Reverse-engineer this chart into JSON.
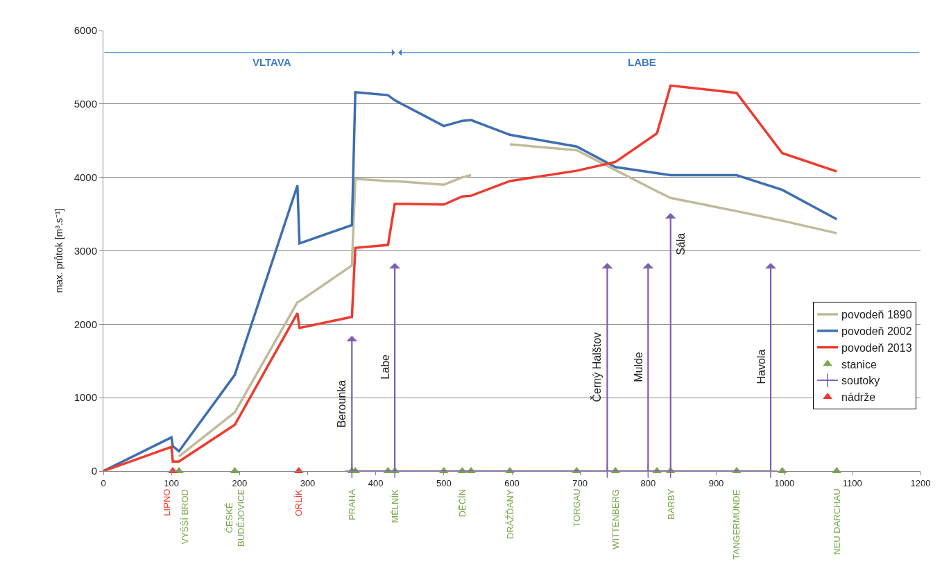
{
  "chart_data": {
    "type": "line",
    "ylabel": "max. průtok [m³.s⁻¹]",
    "xlim": [
      0,
      1200
    ],
    "xticks": [
      0,
      100,
      200,
      300,
      400,
      500,
      600,
      700,
      800,
      900,
      1000,
      1100,
      1200
    ],
    "ylim": [
      0,
      6000
    ],
    "yticks": [
      0,
      1000,
      2000,
      3000,
      4000,
      5000,
      6000
    ],
    "grid": "y",
    "legend": "bottom right",
    "series": [
      {
        "name": "povodeň 1890",
        "color": "#bfbb9a",
        "marker": "none",
        "x": [
          111,
          193,
          285,
          288,
          365,
          370,
          418,
          428,
          500,
          527,
          540,
          null,
          597,
          695,
          752,
          813,
          833,
          930,
          997,
          1077
        ],
        "values": [
          200,
          800,
          2300,
          2310,
          2800,
          3980,
          3950,
          3950,
          3900,
          4000,
          4030,
          null,
          4450,
          4370,
          4100,
          3810,
          3720,
          3540,
          3410,
          3240
        ]
      },
      {
        "name": "povodeň 2002",
        "color": "#3d6eb0",
        "marker": "none",
        "x": [
          0,
          100,
          102,
          111,
          193,
          285,
          288,
          365,
          370,
          418,
          428,
          500,
          527,
          540,
          597,
          695,
          752,
          833,
          930,
          997,
          1077
        ],
        "values": [
          0,
          460,
          340,
          270,
          1310,
          3890,
          3100,
          3350,
          5160,
          5120,
          5050,
          4700,
          4770,
          4780,
          4580,
          4420,
          4140,
          4030,
          4030,
          3830,
          3430
        ]
      },
      {
        "name": "povodeň 2013",
        "color": "#ee3a2e",
        "marker": "none",
        "x": [
          0,
          100,
          102,
          111,
          193,
          285,
          288,
          365,
          370,
          418,
          428,
          500,
          527,
          540,
          597,
          695,
          752,
          813,
          833,
          930,
          997,
          1077
        ],
        "values": [
          0,
          330,
          130,
          130,
          630,
          2150,
          1950,
          2100,
          3040,
          3080,
          3640,
          3630,
          3740,
          3750,
          3950,
          4090,
          4210,
          4600,
          5250,
          5150,
          4330,
          4080
        ]
      },
      {
        "name": "stanice",
        "type": "scatter",
        "color": "#77a848",
        "marker": "triangle",
        "x": [
          111,
          193,
          365,
          370,
          418,
          428,
          500,
          527,
          540,
          597,
          695,
          752,
          813,
          833,
          930,
          997,
          1077
        ],
        "values": [
          0,
          0,
          0,
          0,
          0,
          0,
          0,
          0,
          0,
          0,
          0,
          0,
          0,
          0,
          0,
          0,
          0
        ],
        "value_labels": [
          "VYŠŠÍ BROD",
          "ČESKÉ\nBUDĚJOVICE",
          "PRAHA",
          null,
          null,
          "MĚLNÍK",
          null,
          "DĚČÍN",
          null,
          "DRÁŽĎANY",
          "TORGAU",
          "WITTENBERG",
          null,
          "BARBY",
          "TANGERMÜNDE",
          null,
          "NEU DARCHAU"
        ]
      },
      {
        "name": "soutoky",
        "color": "#7b5fb0",
        "marker": "cross",
        "x": [
          365,
          428,
          740,
          800,
          833,
          980
        ],
        "values": [
          0,
          0,
          0,
          0,
          0,
          0
        ]
      },
      {
        "name": "nádrže",
        "type": "scatter",
        "color": "#ee3a2e",
        "marker": "triangle",
        "x": [
          102,
          287
        ],
        "values": [
          0,
          0
        ],
        "value_labels": [
          "LIPNO",
          "ORLÍK"
        ]
      }
    ],
    "annotations": [
      "VLTAVA",
      "LABE",
      "Berounka",
      "Labe",
      "Černý Halštov",
      "Mulde",
      "Sála",
      "Havola"
    ]
  }
}
